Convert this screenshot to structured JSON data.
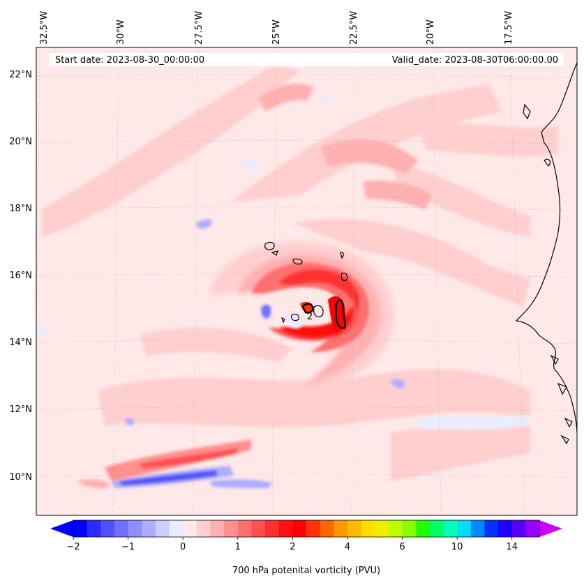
{
  "header": {
    "start_date": "Start date: 2023-08-30_00:00:00",
    "valid_date": "Valid_date: 2023-08-30T06:00:00.00"
  },
  "longitude_labels": [
    "32.5°W",
    "30°W",
    "27.5°W",
    "25°W",
    "22.5°W",
    "20°W",
    "17.5°W"
  ],
  "latitude_labels": [
    "22°N",
    "20°N",
    "18°N",
    "16°N",
    "14°N",
    "12°N",
    "10°N"
  ],
  "contour_label": "2",
  "colorbar": {
    "title": "700 hPa potenital vorticity (PVU)",
    "ticks": [
      "−2",
      "−1",
      "0",
      "1",
      "2",
      "4",
      "6",
      "10",
      "14"
    ],
    "colors": [
      "#0000ff",
      "#2b2bff",
      "#5050ff",
      "#7070ff",
      "#8f8fff",
      "#adadff",
      "#cdcdff",
      "#ececff",
      "#ffe8e8",
      "#ffcfcf",
      "#ffb0b0",
      "#ff9090",
      "#ff7070",
      "#ff5050",
      "#ff3030",
      "#ff1010",
      "#ff0000",
      "#ff3300",
      "#ff6600",
      "#ff9900",
      "#ffbb00",
      "#ffdd00",
      "#eeee00",
      "#bbff00",
      "#88ff00",
      "#22ff00",
      "#00ff66",
      "#00ffbb",
      "#00ddff",
      "#0088ff",
      "#0033ff",
      "#2200ff",
      "#5500ff",
      "#9900ff"
    ],
    "low_extend_color": "#0000ff",
    "high_extend_color": "#cc00ff"
  },
  "colors": {
    "background_field": "#ffe8e8",
    "light_red": "#ffcfcf",
    "mid_red": "#ffb0b0",
    "strong_red": "#ff5050",
    "core_red": "#ff2020",
    "light_blue": "#ececff",
    "mid_blue": "#adadff",
    "deep_blue": "#7070ff"
  }
}
